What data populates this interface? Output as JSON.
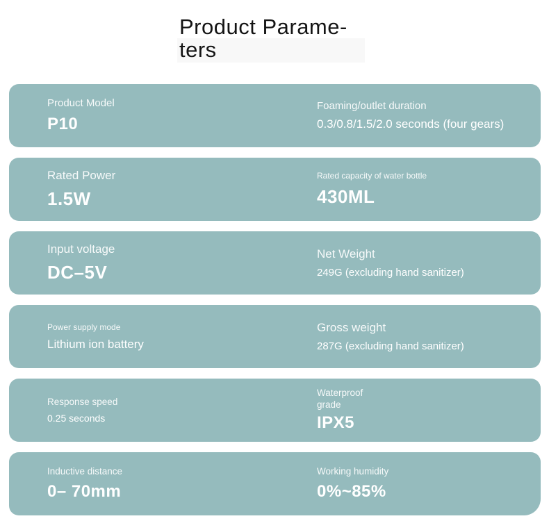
{
  "title": {
    "line1": "Product Parame-",
    "line2": "ters"
  },
  "colors": {
    "card_bg": "#95bbbd",
    "page_bg": "#ffffff",
    "title_text": "#141414",
    "card_text": "#ffffff"
  },
  "rows": [
    {
      "left": {
        "label": "Product Model",
        "value": "P10"
      },
      "right": {
        "label": "Foaming/outlet duration",
        "value": "0.3/0.8/1.5/2.0 seconds (four gears)"
      }
    },
    {
      "left": {
        "label": "Rated Power",
        "value": "1.5W"
      },
      "right": {
        "label": "Rated capacity of water bottle",
        "value": "430ML"
      }
    },
    {
      "left": {
        "label": "Input voltage",
        "value": "DC–5V"
      },
      "right": {
        "label": "Net Weight",
        "value": "249G (excluding hand sanitizer)"
      }
    },
    {
      "left": {
        "label": "Power supply mode",
        "value": "Lithium ion battery"
      },
      "right": {
        "label": "Gross weight",
        "value": "287G (excluding hand sanitizer)"
      }
    },
    {
      "left": {
        "label": "Response speed",
        "value": "0.25 seconds"
      },
      "right": {
        "label": "Waterproof grade",
        "value": "IPX5"
      }
    },
    {
      "left": {
        "label": "Inductive distance",
        "value": "0– 70mm"
      },
      "right": {
        "label": "Working humidity",
        "value": "0%~85%"
      }
    }
  ]
}
